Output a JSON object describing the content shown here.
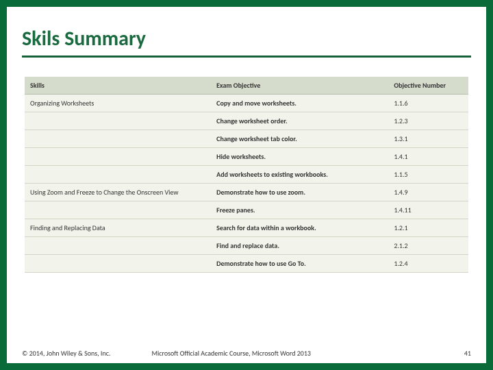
{
  "title": "Skils Summary",
  "table": {
    "headers": {
      "skills": "Skills",
      "exam_objective": "Exam Objective",
      "objective_number": "Objective Number"
    },
    "rows": [
      {
        "skill": "Organizing Worksheets",
        "objective": "Copy and move worksheets.",
        "number": "1.1.6"
      },
      {
        "skill": "",
        "objective": "Change worksheet order.",
        "number": "1.2.3"
      },
      {
        "skill": "",
        "objective": "Change worksheet tab color.",
        "number": "1.3.1"
      },
      {
        "skill": "",
        "objective": "Hide worksheets.",
        "number": "1.4.1"
      },
      {
        "skill": "",
        "objective": "Add worksheets to existing workbooks.",
        "number": "1.1.5"
      },
      {
        "skill": "Using Zoom and Freeze to Change the Onscreen View",
        "objective": "Demonstrate how to use zoom.",
        "number": "1.4.9"
      },
      {
        "skill": "",
        "objective": "Freeze panes.",
        "number": "1.4.11"
      },
      {
        "skill": "Finding and Replacing Data",
        "objective": "Search for data within a workbook.",
        "number": "1.2.1"
      },
      {
        "skill": "",
        "objective": "Find and replace data.",
        "number": "2.1.2"
      },
      {
        "skill": "",
        "objective": "Demonstrate how to use Go To.",
        "number": "1.2.4"
      }
    ]
  },
  "footer": {
    "copyright": "© 2014, John Wiley & Sons, Inc.",
    "course": "Microsoft Official Academic Course, Microsoft Word 2013",
    "page": "41"
  },
  "styles": {
    "border_color": "#0a6b3a",
    "title_color": "#1a6a3f",
    "title_underline": "#16603a",
    "header_bg": "#d5dccc",
    "row_bg": "#f2f4ec",
    "row_border": "#d0d5c6",
    "title_fontsize": 30,
    "table_fontsize": 10,
    "footer_fontsize": 10
  }
}
